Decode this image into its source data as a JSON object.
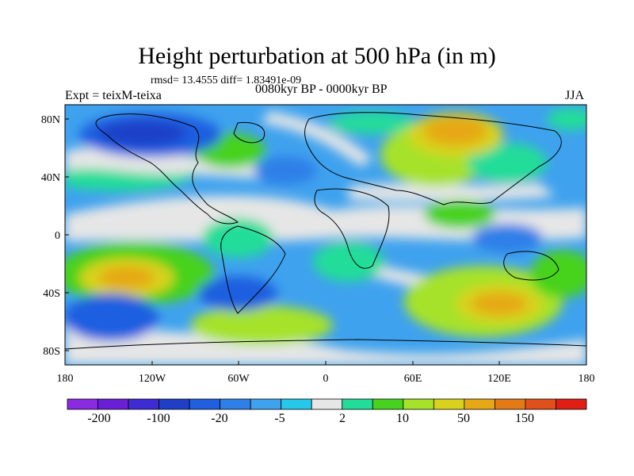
{
  "title": "Height perturbation at 500 hPa (in m)",
  "stats": "rmsd= 13.4555 diff= 1.83491e-09",
  "experiment": "Expt = teixM-teixa",
  "period": "0080kyr BP - 0000kyr BP",
  "season": "JJA",
  "axes": {
    "lon_ticks": [
      "180",
      "120W",
      "60W",
      "0",
      "60E",
      "120E",
      "180"
    ],
    "lat_ticks": [
      "80N",
      "40N",
      "0",
      "40S",
      "80S"
    ]
  },
  "colorbar": {
    "colors": [
      "#8a2be2",
      "#6a1fd6",
      "#3f2bd4",
      "#1f3fc8",
      "#1f5fe0",
      "#2f7fe8",
      "#3fa2ee",
      "#25c8e8",
      "#e6e6e6",
      "#22dd99",
      "#46d21e",
      "#a6e22a",
      "#d8d21e",
      "#e6a815",
      "#e47a16",
      "#e0501a",
      "#e01e14"
    ],
    "labels": [
      "-200",
      "-100",
      "-20",
      "-5",
      "2",
      "10",
      "50",
      "150"
    ]
  }
}
